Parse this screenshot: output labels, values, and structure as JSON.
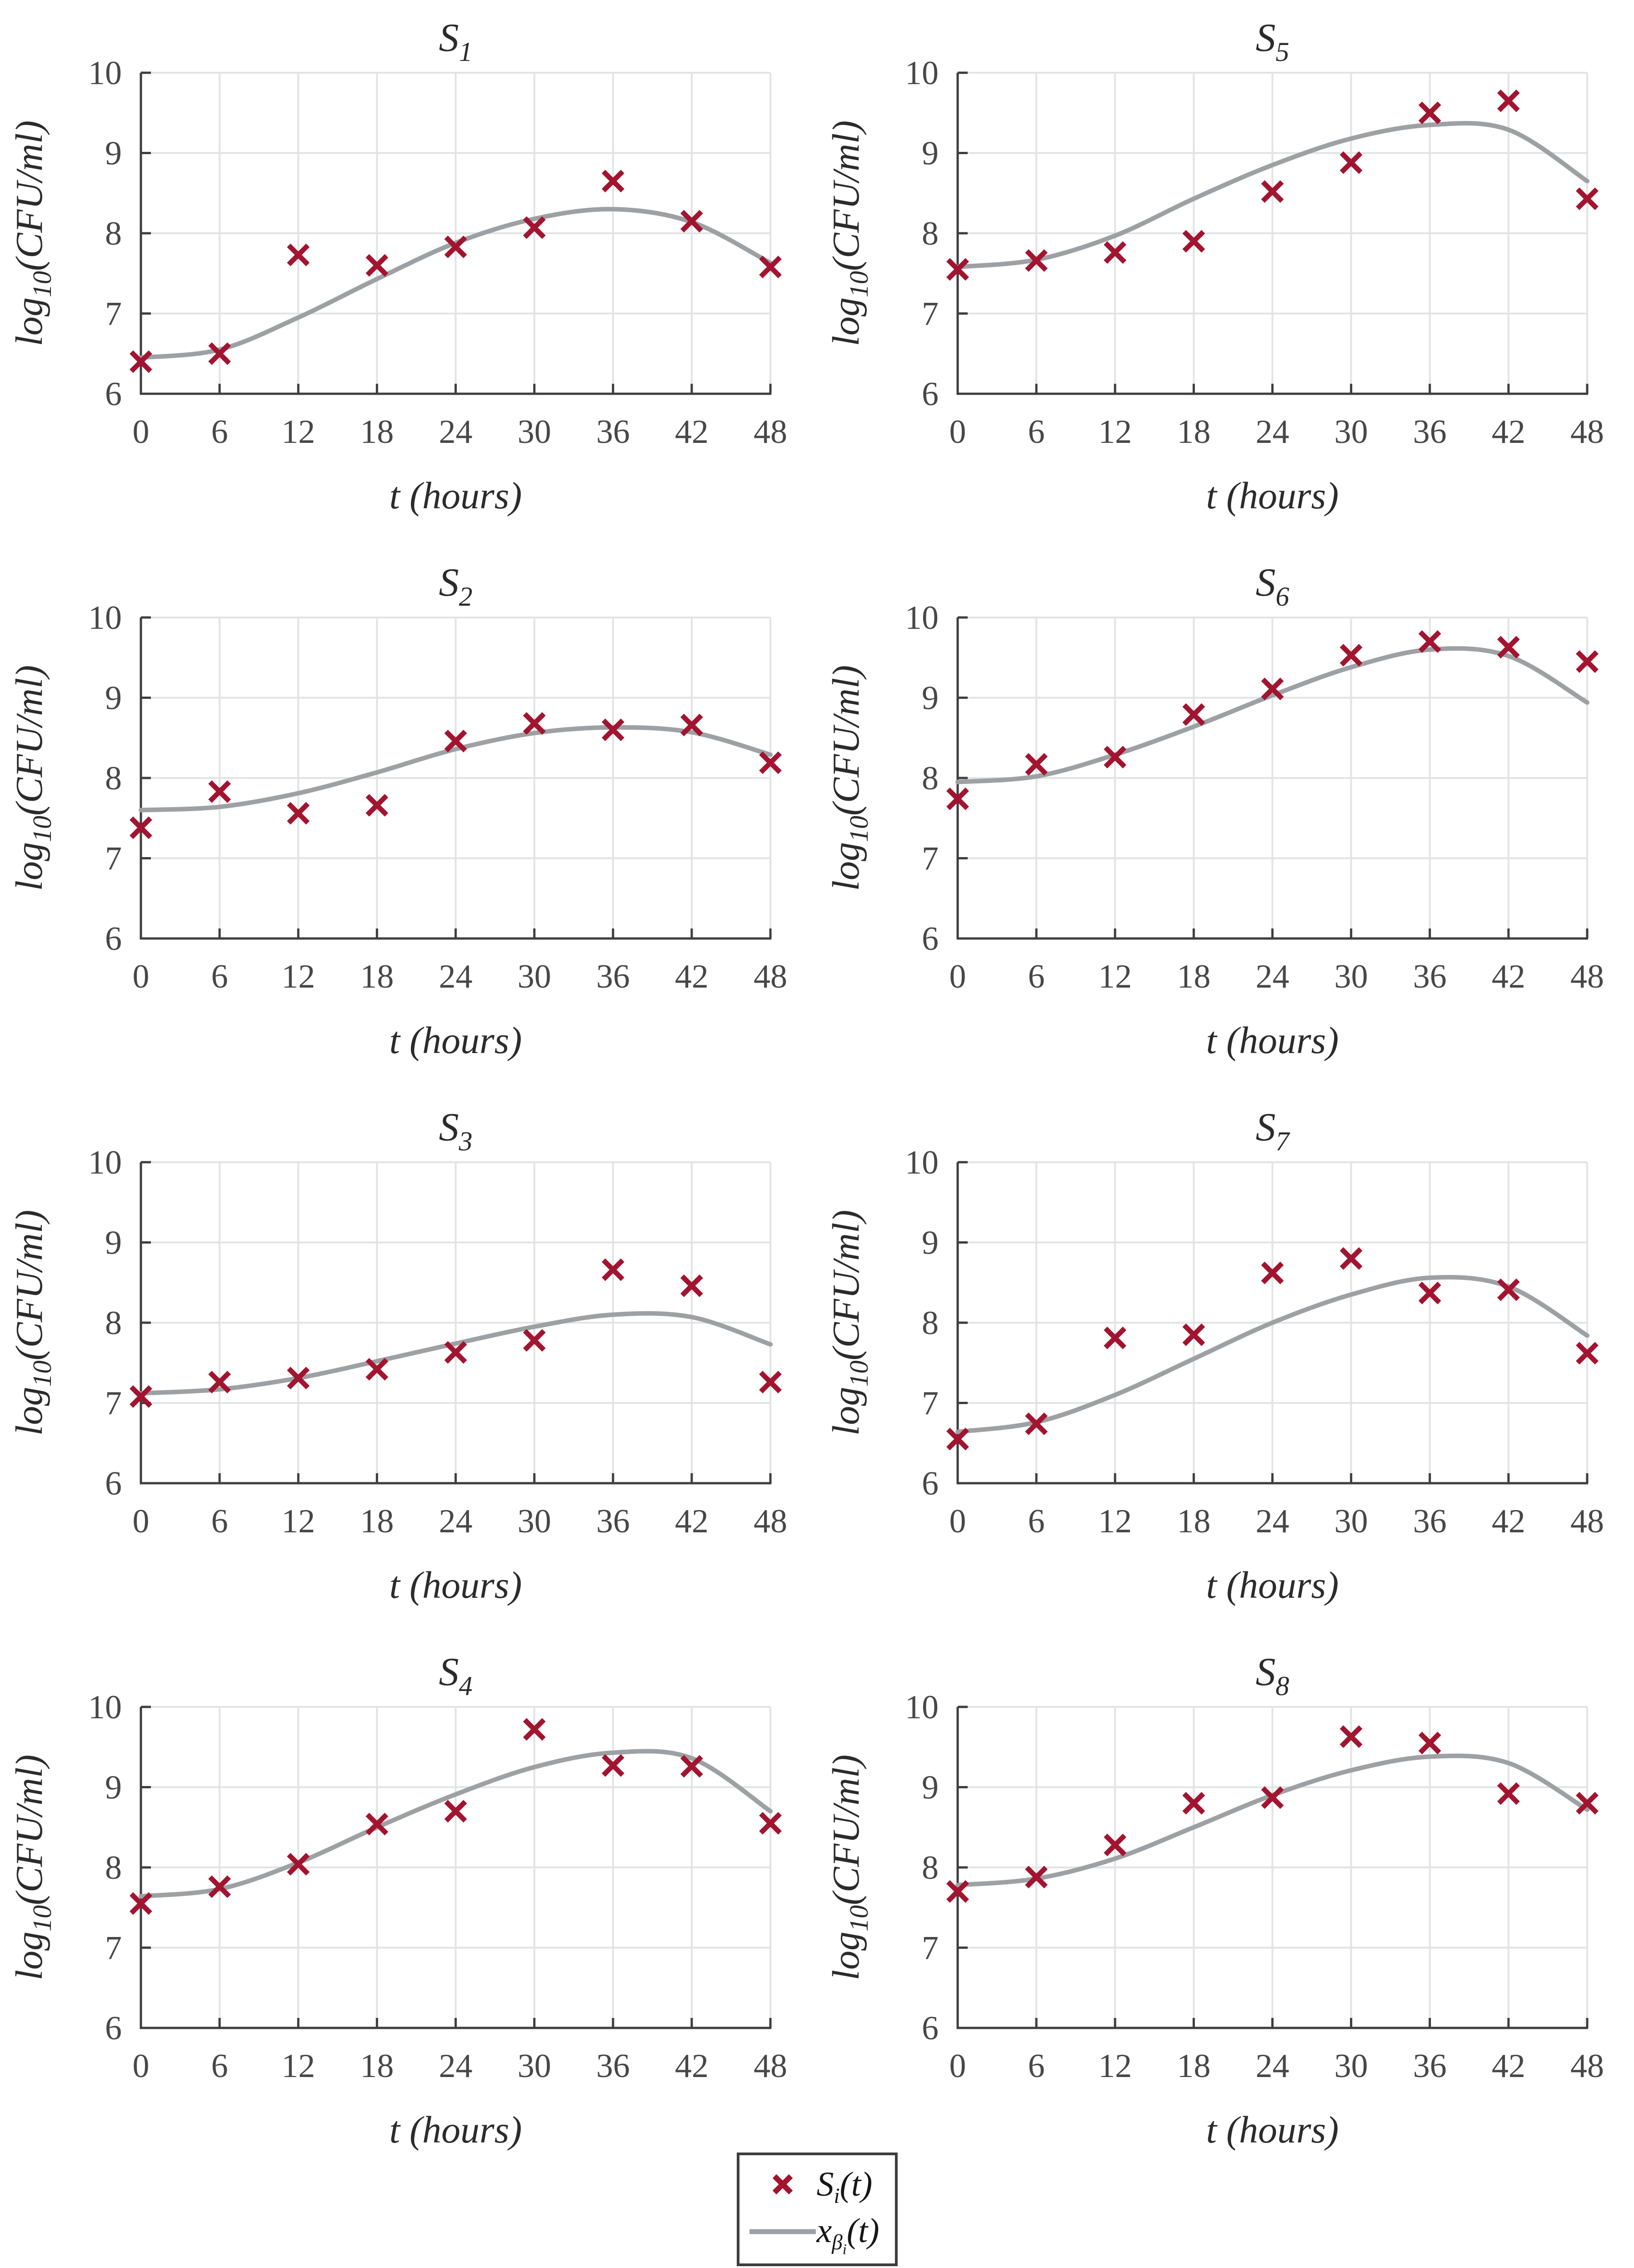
{
  "figure": {
    "background": "#ffffff",
    "marker_color": "#A2142F",
    "curve_color": "#9EA1A4",
    "grid_color": "#E2E3E5",
    "axis_color": "#3E3E40",
    "tick_label_color": "#474747",
    "title_color": "#2B2B2B",
    "legend_text_color": "#161616"
  },
  "axes_defaults": {
    "xlabel": "t (hours)",
    "ylabel": {
      "base": "log",
      "sub": "10",
      "rest": "(CFU/ml)"
    },
    "xlim": [
      0,
      48
    ],
    "ylim": [
      6,
      10
    ],
    "x_ticks": [
      0,
      6,
      12,
      18,
      24,
      30,
      36,
      42,
      48
    ],
    "y_ticks": [
      6,
      7,
      8,
      9,
      10
    ],
    "grid": true
  },
  "legend": {
    "entries": [
      {
        "symbol": "x-marker",
        "label": {
          "base": "S",
          "sub": "i",
          "subsub": "",
          "rest": "(t)"
        }
      },
      {
        "symbol": "line",
        "label": {
          "base": "x",
          "sub": "β",
          "subsub": "i",
          "rest": "(t)"
        }
      }
    ]
  },
  "chart_data": [
    {
      "type": "scatter",
      "name": "S1",
      "title": {
        "base": "S",
        "sub": "1"
      },
      "xlabel": "t (hours)",
      "ylabel": "log10(CFU/ml)",
      "xlim": [
        0,
        48
      ],
      "ylim": [
        6,
        10
      ],
      "x": [
        0,
        6,
        12,
        18,
        24,
        30,
        36,
        42,
        48
      ],
      "scatter_y": [
        6.4,
        6.5,
        7.73,
        7.6,
        7.83,
        8.07,
        8.65,
        8.15,
        7.58
      ],
      "fit_curve_y": [
        6.45,
        6.55,
        6.95,
        7.43,
        7.88,
        8.18,
        8.3,
        8.14,
        7.63
      ]
    },
    {
      "type": "scatter",
      "name": "S5",
      "title": {
        "base": "S",
        "sub": "5"
      },
      "xlabel": "t (hours)",
      "ylabel": "log10(CFU/ml)",
      "xlim": [
        0,
        48
      ],
      "ylim": [
        6,
        10
      ],
      "x": [
        0,
        6,
        12,
        18,
        24,
        30,
        36,
        42,
        48
      ],
      "scatter_y": [
        7.55,
        7.66,
        7.76,
        7.9,
        8.52,
        8.88,
        9.5,
        9.65,
        8.43
      ],
      "fit_curve_y": [
        7.58,
        7.67,
        7.97,
        8.43,
        8.85,
        9.18,
        9.35,
        9.29,
        8.65
      ]
    },
    {
      "type": "scatter",
      "name": "S2",
      "title": {
        "base": "S",
        "sub": "2"
      },
      "xlabel": "t (hours)",
      "ylabel": "log10(CFU/ml)",
      "xlim": [
        0,
        48
      ],
      "ylim": [
        6,
        10
      ],
      "x": [
        0,
        6,
        12,
        18,
        24,
        30,
        36,
        42,
        48
      ],
      "scatter_y": [
        7.38,
        7.83,
        7.56,
        7.66,
        8.46,
        8.68,
        8.6,
        8.66,
        8.19
      ],
      "fit_curve_y": [
        7.6,
        7.64,
        7.81,
        8.07,
        8.36,
        8.56,
        8.63,
        8.57,
        8.29
      ]
    },
    {
      "type": "scatter",
      "name": "S6",
      "title": {
        "base": "S",
        "sub": "6"
      },
      "xlabel": "t (hours)",
      "ylabel": "log10(CFU/ml)",
      "xlim": [
        0,
        48
      ],
      "ylim": [
        6,
        10
      ],
      "x": [
        0,
        6,
        12,
        18,
        24,
        30,
        36,
        42,
        48
      ],
      "scatter_y": [
        7.74,
        8.17,
        8.26,
        8.79,
        9.11,
        9.53,
        9.7,
        9.63,
        9.45
      ],
      "fit_curve_y": [
        7.95,
        8.02,
        8.29,
        8.64,
        9.03,
        9.38,
        9.6,
        9.52,
        8.94
      ]
    },
    {
      "type": "scatter",
      "name": "S3",
      "title": {
        "base": "S",
        "sub": "3"
      },
      "xlabel": "t (hours)",
      "ylabel": "log10(CFU/ml)",
      "xlim": [
        0,
        48
      ],
      "ylim": [
        6,
        10
      ],
      "x": [
        0,
        6,
        12,
        18,
        24,
        30,
        36,
        42,
        48
      ],
      "scatter_y": [
        7.08,
        7.26,
        7.31,
        7.42,
        7.63,
        7.78,
        8.66,
        8.46,
        7.26
      ],
      "fit_curve_y": [
        7.12,
        7.17,
        7.31,
        7.52,
        7.74,
        7.95,
        8.1,
        8.07,
        7.73
      ]
    },
    {
      "type": "scatter",
      "name": "S7",
      "title": {
        "base": "S",
        "sub": "7"
      },
      "xlabel": "t (hours)",
      "ylabel": "log10(CFU/ml)",
      "xlim": [
        0,
        48
      ],
      "ylim": [
        6,
        10
      ],
      "x": [
        0,
        6,
        12,
        18,
        24,
        30,
        36,
        42,
        48
      ],
      "scatter_y": [
        6.55,
        6.74,
        7.81,
        7.85,
        8.62,
        8.8,
        8.37,
        8.41,
        7.62
      ],
      "fit_curve_y": [
        6.64,
        6.76,
        7.1,
        7.55,
        8.0,
        8.35,
        8.56,
        8.45,
        7.84
      ]
    },
    {
      "type": "scatter",
      "name": "S4",
      "title": {
        "base": "S",
        "sub": "4"
      },
      "xlabel": "t (hours)",
      "ylabel": "log10(CFU/ml)",
      "xlim": [
        0,
        48
      ],
      "ylim": [
        6,
        10
      ],
      "x": [
        0,
        6,
        12,
        18,
        24,
        30,
        36,
        42,
        48
      ],
      "scatter_y": [
        7.55,
        7.76,
        8.04,
        8.54,
        8.7,
        9.72,
        9.27,
        9.26,
        8.55
      ],
      "fit_curve_y": [
        7.64,
        7.73,
        8.06,
        8.5,
        8.91,
        9.25,
        9.43,
        9.36,
        8.7
      ]
    },
    {
      "type": "scatter",
      "name": "S8",
      "title": {
        "base": "S",
        "sub": "8"
      },
      "xlabel": "t (hours)",
      "ylabel": "log10(CFU/ml)",
      "xlim": [
        0,
        48
      ],
      "ylim": [
        6,
        10
      ],
      "x": [
        0,
        6,
        12,
        18,
        24,
        30,
        36,
        42,
        48
      ],
      "scatter_y": [
        7.7,
        7.88,
        8.28,
        8.8,
        8.87,
        9.63,
        9.55,
        8.92,
        8.8
      ],
      "fit_curve_y": [
        7.78,
        7.86,
        8.11,
        8.5,
        8.9,
        9.21,
        9.38,
        9.3,
        8.72
      ]
    }
  ]
}
